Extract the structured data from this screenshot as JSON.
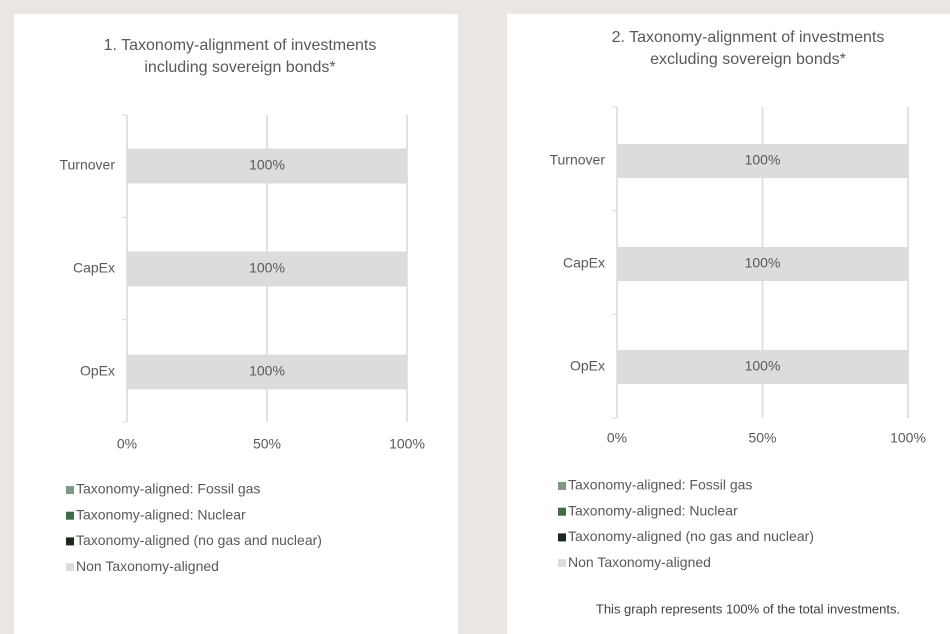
{
  "chart_data": [
    {
      "type": "bar",
      "orientation": "horizontal",
      "stacked": true,
      "title": [
        "1. Taxonomy-alignment of investments",
        "including sovereign bonds*"
      ],
      "categories": [
        "Turnover",
        "CapEx",
        "OpEx"
      ],
      "series": [
        {
          "name": "Taxonomy-aligned: Fossil gas",
          "color": "#7f9a82",
          "values": [
            0,
            0,
            0
          ]
        },
        {
          "name": "Taxonomy-aligned: Nuclear",
          "color": "#3f6b45",
          "values": [
            0,
            0,
            0
          ]
        },
        {
          "name": "Taxonomy-aligned (no gas and nuclear)",
          "color": "#1b2a1c",
          "values": [
            0,
            0,
            0
          ]
        },
        {
          "name": "Non Taxonomy-aligned",
          "color": "#dcdcdc",
          "values": [
            100,
            100,
            100
          ],
          "value_labels": [
            "100%",
            "100%",
            "100%"
          ]
        }
      ],
      "xlim": [
        0,
        100
      ],
      "xticks": [
        {
          "value": 0,
          "label": "0%"
        },
        {
          "value": 50,
          "label": "50%"
        },
        {
          "value": 100,
          "label": "100%"
        }
      ],
      "grid": true,
      "legend": "bottom"
    },
    {
      "type": "bar",
      "orientation": "horizontal",
      "stacked": true,
      "title": [
        "2. Taxonomy-alignment of investments",
        "excluding sovereign bonds*"
      ],
      "categories": [
        "Turnover",
        "CapEx",
        "OpEx"
      ],
      "series": [
        {
          "name": "Taxonomy-aligned: Fossil gas",
          "color": "#7f9a82",
          "values": [
            0,
            0,
            0
          ]
        },
        {
          "name": "Taxonomy-aligned: Nuclear",
          "color": "#3f6b45",
          "values": [
            0,
            0,
            0
          ]
        },
        {
          "name": "Taxonomy-aligned (no gas and nuclear)",
          "color": "#1b2a1c",
          "values": [
            0,
            0,
            0
          ]
        },
        {
          "name": "Non Taxonomy-aligned",
          "color": "#dcdcdc",
          "values": [
            100,
            100,
            100
          ],
          "value_labels": [
            "100%",
            "100%",
            "100%"
          ]
        }
      ],
      "xlim": [
        0,
        100
      ],
      "xticks": [
        {
          "value": 0,
          "label": "0%"
        },
        {
          "value": 50,
          "label": "50%"
        },
        {
          "value": 100,
          "label": "100%"
        }
      ],
      "grid": true,
      "legend": "bottom",
      "note": "This graph represents 100% of the total investments."
    }
  ]
}
